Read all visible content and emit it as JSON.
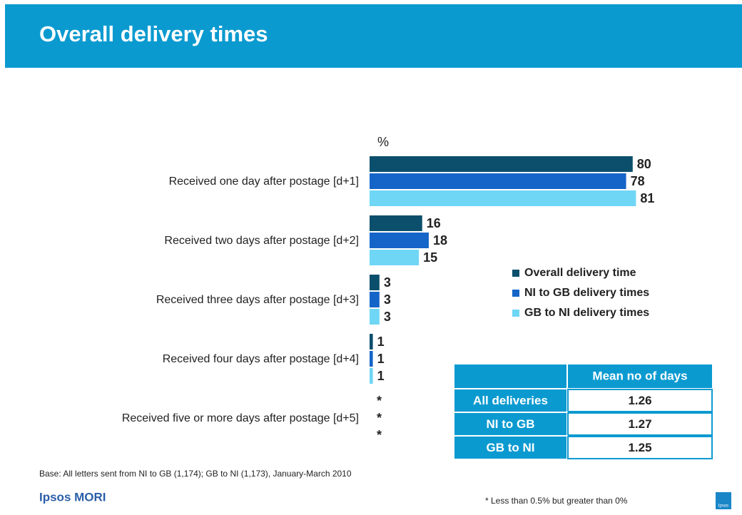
{
  "chart_data": {
    "type": "bar",
    "orientation": "horizontal",
    "title": "Overall delivery times",
    "unit_label": "%",
    "categories": [
      "Received one day after postage [d+1]",
      "Received two days after postage [d+2]",
      "Received three days after postage [d+3]",
      "Received four days after postage [d+4]",
      "Received five or more days after postage [d+5]"
    ],
    "series": [
      {
        "name": "Overall delivery time",
        "color": "#0b4f6c",
        "values": [
          80,
          16,
          3,
          1,
          0
        ],
        "value_labels": [
          "80",
          "16",
          "3",
          "1",
          "*"
        ]
      },
      {
        "name": "NI to GB delivery times",
        "color": "#1565c8",
        "values": [
          78,
          18,
          3,
          1,
          0
        ],
        "value_labels": [
          "78",
          "18",
          "3",
          "1",
          "*"
        ]
      },
      {
        "name": "GB to NI delivery times",
        "color": "#6fd6f5",
        "values": [
          81,
          15,
          3,
          1,
          0
        ],
        "value_labels": [
          "81",
          "15",
          "3",
          "1",
          "*"
        ]
      }
    ],
    "xlim": [
      0,
      100
    ]
  },
  "table": {
    "header": [
      "Mean no of days"
    ],
    "rows": [
      [
        "All deliveries",
        "1.26"
      ],
      [
        "NI to GB",
        "1.27"
      ],
      [
        "GB to NI",
        "1.25"
      ]
    ]
  },
  "base_note": "Base: All letters sent from NI to GB (1,174); GB to NI (1,173), January-March 2010",
  "brand": "Ipsos MORI",
  "logo_text": "Ipsos",
  "footnote": "* Less than 0.5% but greater than 0%"
}
